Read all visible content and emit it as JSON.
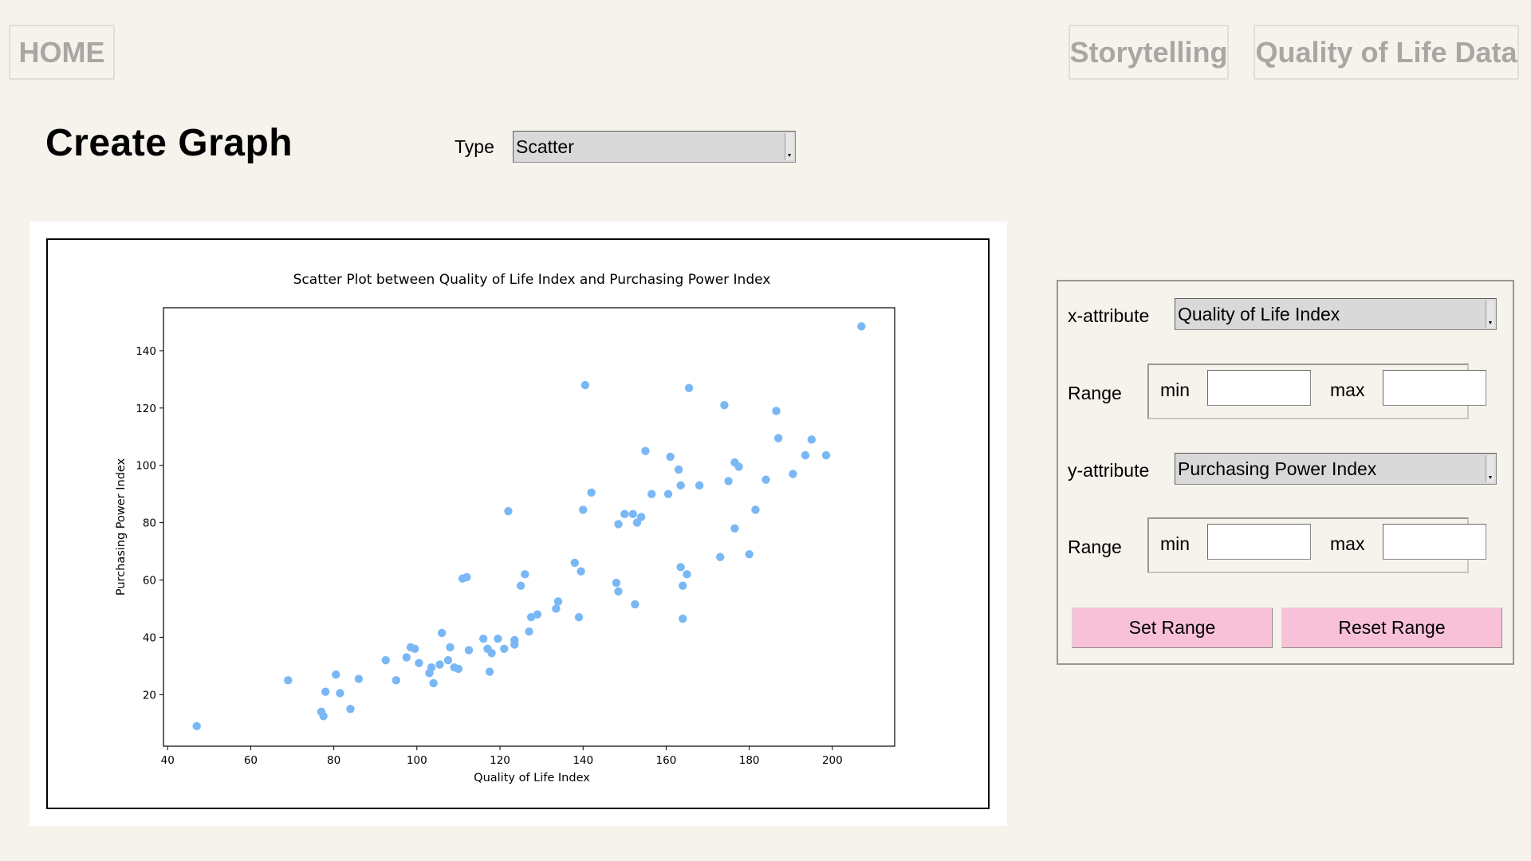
{
  "nav": {
    "home": "HOME",
    "storytelling": "Storytelling",
    "qol_data": "Quality of Life Data"
  },
  "page_title": "Create Graph",
  "type_selector": {
    "label": "Type",
    "value": "Scatter"
  },
  "controls": {
    "x_attribute_label": "x-attribute",
    "x_attribute_value": "Quality of Life Index",
    "y_attribute_label": "y-attribute",
    "y_attribute_value": "Purchasing Power Index",
    "range_label": "Range",
    "min_label": "min",
    "max_label": "max",
    "x_min": "",
    "x_max": "",
    "y_min": "",
    "y_max": "",
    "set_range": "Set Range",
    "reset_range": "Reset Range"
  },
  "colors": {
    "point": "#7ab8f5",
    "button": "#f8c1d7",
    "background": "#f6f3ec"
  },
  "chart_data": {
    "type": "scatter",
    "title": "Scatter Plot between Quality of Life Index and Purchasing Power Index",
    "xlabel": "Quality of Life Index",
    "ylabel": "Purchasing Power Index",
    "xlim": [
      39,
      215
    ],
    "ylim": [
      2,
      155
    ],
    "xticks": [
      40,
      60,
      80,
      100,
      120,
      140,
      160,
      180,
      200
    ],
    "yticks": [
      20,
      40,
      60,
      80,
      100,
      120,
      140
    ],
    "grid": false,
    "points": [
      [
        47,
        9
      ],
      [
        69,
        25
      ],
      [
        77,
        14
      ],
      [
        77.5,
        12.5
      ],
      [
        78,
        21
      ],
      [
        80.5,
        27
      ],
      [
        81.5,
        20.5
      ],
      [
        84,
        15
      ],
      [
        86,
        25.5
      ],
      [
        92.5,
        32
      ],
      [
        95,
        25
      ],
      [
        97.5,
        33
      ],
      [
        98.5,
        36.5
      ],
      [
        99.5,
        36
      ],
      [
        100.5,
        31
      ],
      [
        103,
        27.5
      ],
      [
        103.5,
        29.5
      ],
      [
        104,
        24
      ],
      [
        105.5,
        30.5
      ],
      [
        106,
        41.5
      ],
      [
        107.5,
        32
      ],
      [
        108,
        36.5
      ],
      [
        109,
        29.5
      ],
      [
        110,
        29
      ],
      [
        111,
        60.5
      ],
      [
        112,
        61
      ],
      [
        112.5,
        35.5
      ],
      [
        116,
        39.5
      ],
      [
        117,
        36
      ],
      [
        117.5,
        28
      ],
      [
        118,
        34.5
      ],
      [
        119.5,
        39.5
      ],
      [
        121,
        36
      ],
      [
        122,
        84
      ],
      [
        123.5,
        37.5
      ],
      [
        123.5,
        39
      ],
      [
        125,
        58
      ],
      [
        126,
        62
      ],
      [
        127,
        42
      ],
      [
        127.5,
        47
      ],
      [
        129,
        48
      ],
      [
        133.5,
        50
      ],
      [
        134,
        52.5
      ],
      [
        138,
        66
      ],
      [
        139,
        47
      ],
      [
        139.5,
        63
      ],
      [
        140,
        84.5
      ],
      [
        140.5,
        128
      ],
      [
        142,
        90.5
      ],
      [
        148,
        59
      ],
      [
        148.5,
        79.5
      ],
      [
        148.5,
        56
      ],
      [
        150,
        83
      ],
      [
        152,
        83
      ],
      [
        152.5,
        51.5
      ],
      [
        153,
        80
      ],
      [
        154,
        82
      ],
      [
        155,
        105
      ],
      [
        156.5,
        90
      ],
      [
        160.5,
        90
      ],
      [
        161,
        103
      ],
      [
        163,
        98.5
      ],
      [
        163.5,
        64.5
      ],
      [
        163.5,
        93
      ],
      [
        164,
        58
      ],
      [
        164,
        46.5
      ],
      [
        165,
        62
      ],
      [
        165.5,
        127
      ],
      [
        168,
        93
      ],
      [
        173,
        68
      ],
      [
        174,
        121
      ],
      [
        175,
        94.5
      ],
      [
        176.5,
        101
      ],
      [
        176.5,
        78
      ],
      [
        177.5,
        99.5
      ],
      [
        180,
        69
      ],
      [
        181.5,
        84.5
      ],
      [
        184,
        95
      ],
      [
        186.5,
        119
      ],
      [
        187,
        109.5
      ],
      [
        190.5,
        97
      ],
      [
        193.5,
        103.5
      ],
      [
        195,
        109
      ],
      [
        198.5,
        103.5
      ],
      [
        207,
        148.5
      ]
    ]
  }
}
